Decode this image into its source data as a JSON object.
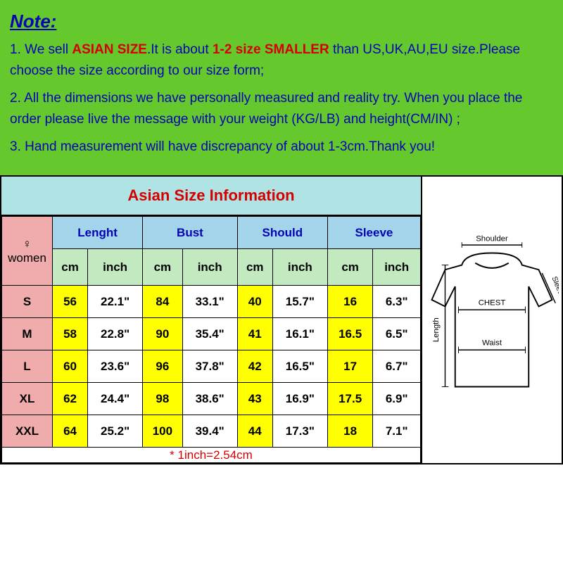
{
  "note": {
    "title": "Note:",
    "p1_a": "1.  We sell ",
    "p1_b": "ASIAN SIZE",
    "p1_c": ".It is about ",
    "p1_d": "1-2 size SMALLER",
    "p1_e": " than US,UK,AU,EU size.Please choose the size according to our size form;",
    "p2": "2.  All the dimensions we have personally measured and reality try. When you place the order please live the message with your weight (KG/LB) and height(CM/IN) ;",
    "p3": "3.  Hand measurement will have discrepancy of about 1-3cm.Thank you!"
  },
  "header": {
    "title": "Asian Size Information"
  },
  "table": {
    "row_label_symbol": "♀",
    "row_label": "women",
    "groups": [
      "Lenght",
      "Bust",
      "Should",
      "Sleeve"
    ],
    "units": [
      "cm",
      "inch",
      "cm",
      "inch",
      "cm",
      "inch",
      "cm",
      "inch"
    ],
    "rows": [
      {
        "size": "S",
        "cells": [
          "56",
          "22.1\"",
          "84",
          "33.1\"",
          "40",
          "15.7\"",
          "16",
          "6.3\""
        ]
      },
      {
        "size": "M",
        "cells": [
          "58",
          "22.8\"",
          "90",
          "35.4\"",
          "41",
          "16.1\"",
          "16.5",
          "6.5\""
        ]
      },
      {
        "size": "L",
        "cells": [
          "60",
          "23.6\"",
          "96",
          "37.8\"",
          "42",
          "16.5\"",
          "17",
          "6.7\""
        ]
      },
      {
        "size": "XL",
        "cells": [
          "62",
          "24.4\"",
          "98",
          "38.6\"",
          "43",
          "16.9\"",
          "17.5",
          "6.9\""
        ]
      },
      {
        "size": "XXL",
        "cells": [
          "64",
          "25.2\"",
          "100",
          "39.4\"",
          "44",
          "17.3\"",
          "18",
          "7.1\""
        ]
      }
    ],
    "footnote": "* 1inch=2.54cm"
  },
  "diagram": {
    "labels": {
      "shoulder": "Shoulder",
      "chest": "CHEST",
      "waist": "Waist",
      "length": "Length",
      "sleeves": "Sleeves"
    }
  },
  "colors": {
    "note_bg": "#65c82d",
    "blue_text": "#0404b5",
    "red_text": "#d60000",
    "title_bg": "#b0e4e4",
    "group_bg": "#a3d4ea",
    "unit_bg": "#c3e9c1",
    "size_bg": "#f0acac",
    "cm_bg": "#ffff00"
  }
}
